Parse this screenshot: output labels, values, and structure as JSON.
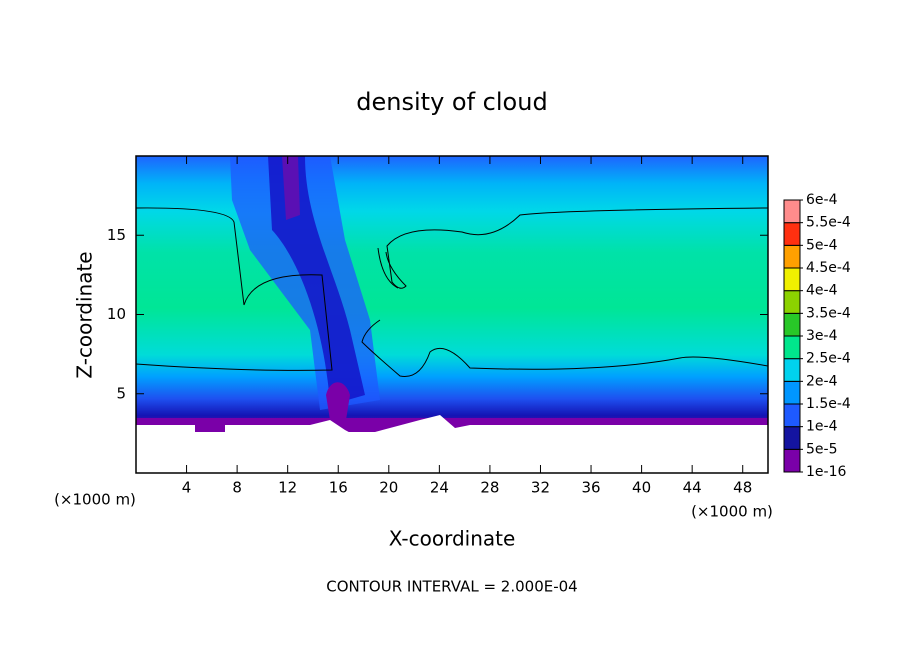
{
  "chart_data": {
    "type": "contour",
    "title": "density of cloud",
    "xlabel": "X-coordinate",
    "ylabel": "Z-coordinate",
    "x_unit": "(×1000 m)",
    "y_unit": "(×1000 m)",
    "note": "CONTOUR INTERVAL = 2.000E-04",
    "xlim": [
      0,
      50
    ],
    "xticks": [
      4,
      8,
      12,
      16,
      20,
      24,
      28,
      32,
      36,
      40,
      44,
      48
    ],
    "ylim": [
      0,
      20
    ],
    "yticks": [
      5,
      10,
      15
    ],
    "colorbar": {
      "levels": [
        {
          "value": 1e-16,
          "label": "1e-16"
        },
        {
          "value": 5e-05,
          "label": "5e-5"
        },
        {
          "value": 0.0001,
          "label": "1e-4"
        },
        {
          "value": 0.00015,
          "label": "1.5e-4"
        },
        {
          "value": 0.0002,
          "label": "2e-4"
        },
        {
          "value": 0.00025,
          "label": "2.5e-4"
        },
        {
          "value": 0.0003,
          "label": "3e-4"
        },
        {
          "value": 0.00035,
          "label": "3.5e-4"
        },
        {
          "value": 0.0004,
          "label": "4e-4"
        },
        {
          "value": 0.00045,
          "label": "4.5e-4"
        },
        {
          "value": 0.0005,
          "label": "5e-4"
        },
        {
          "value": 0.00055,
          "label": "5.5e-4"
        },
        {
          "value": 0.0006,
          "label": "6e-4"
        }
      ],
      "colors": [
        "#7a00a8",
        "#1414a0",
        "#1e5aff",
        "#0096ff",
        "#00d2ee",
        "#00e68c",
        "#28c828",
        "#8cd200",
        "#f0f000",
        "#ffa000",
        "#ff3010",
        "#ff8c8c"
      ]
    }
  }
}
